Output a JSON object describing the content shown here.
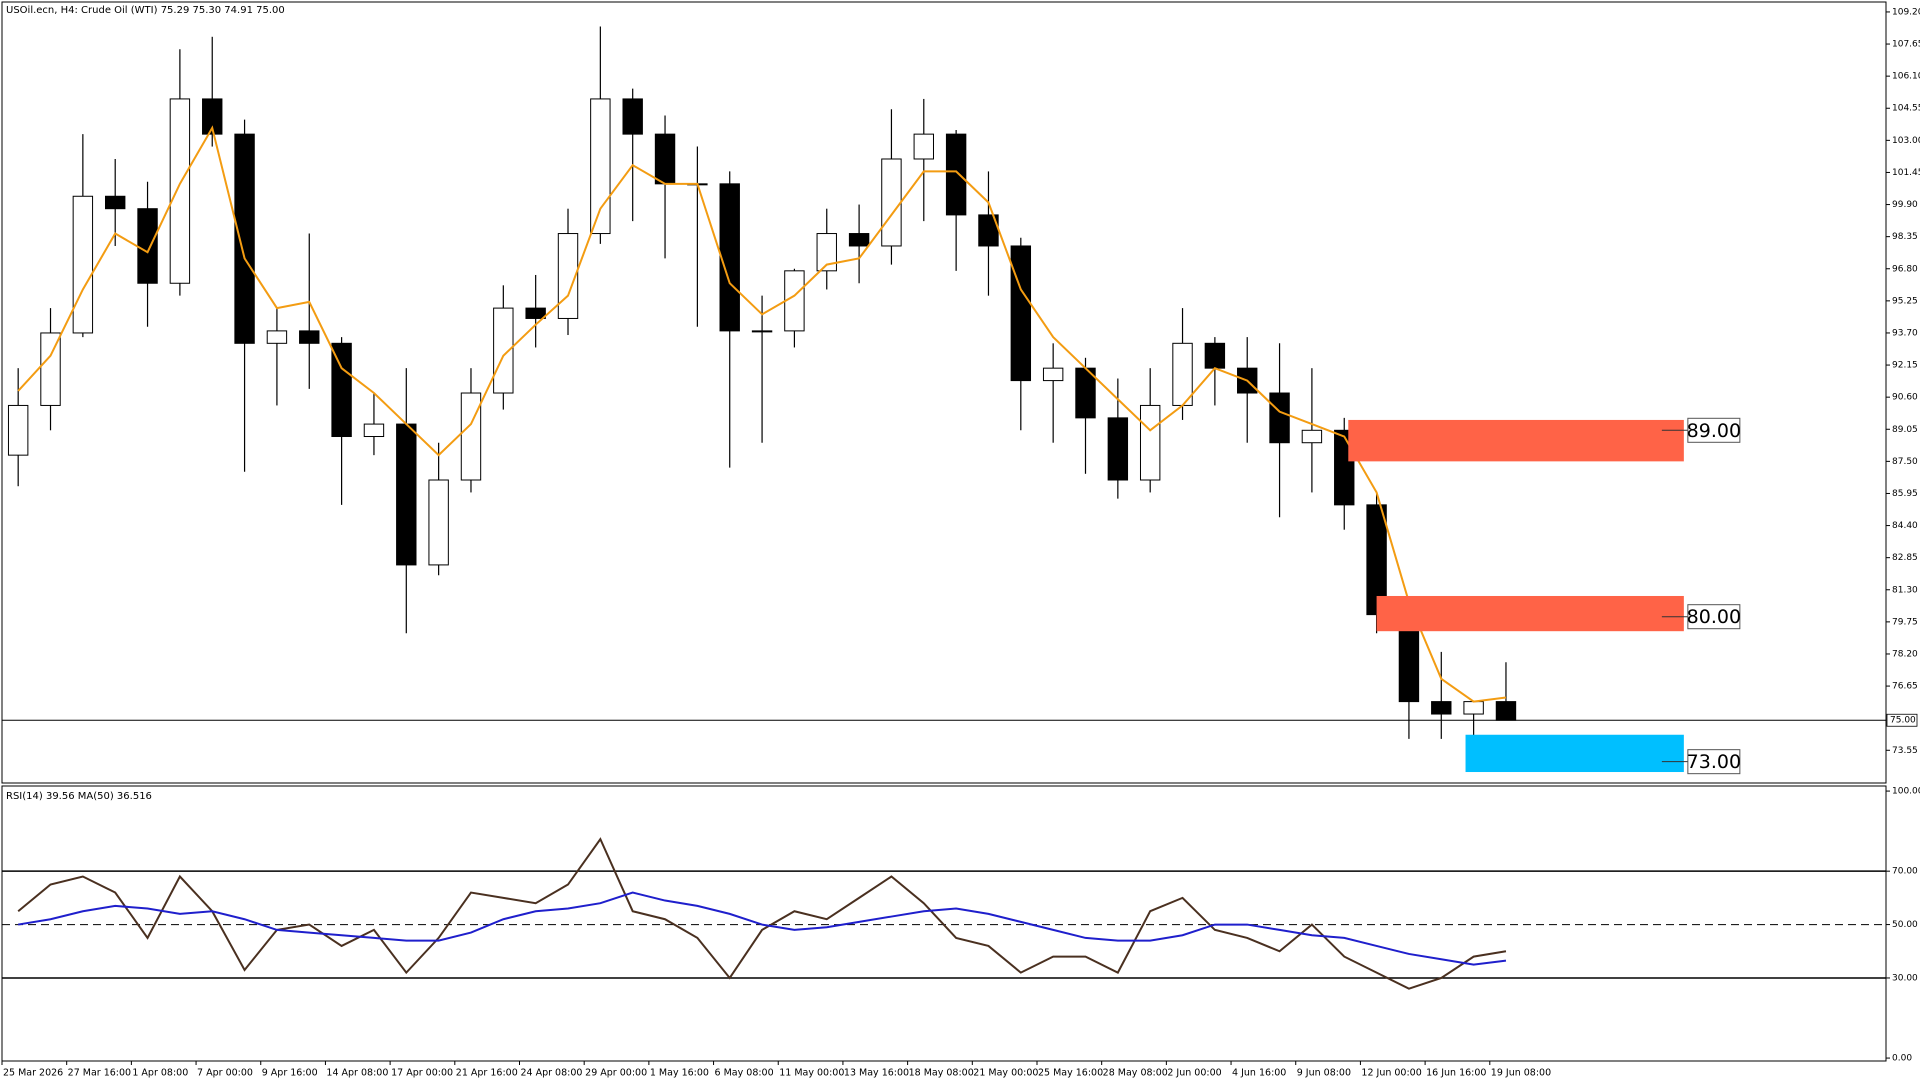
{
  "chart_data": [
    {
      "type": "candlestick",
      "title": "USOil.ecn, H4: Crude Oil (WTI) 75.29 75.30 74.91 75.00",
      "x": [
        4,
        12,
        20,
        28,
        36,
        44,
        52,
        60,
        68,
        76,
        84,
        92,
        100,
        108,
        116,
        124,
        132,
        140,
        148,
        156,
        164,
        172,
        180,
        188,
        196,
        204,
        212,
        220,
        228,
        236,
        244,
        252,
        260,
        268,
        276,
        284,
        292,
        300,
        308,
        316,
        324,
        332,
        340,
        348,
        356,
        364,
        372
      ],
      "open": [
        87.8,
        90.2,
        93.7,
        100.3,
        99.7,
        96.1,
        105.0,
        103.3,
        93.2,
        93.8,
        93.2,
        88.7,
        89.3,
        82.5,
        86.6,
        90.8,
        94.9,
        94.4,
        98.5,
        105.0,
        103.3,
        100.9,
        100.9,
        93.8,
        93.8,
        96.7,
        98.5,
        97.9,
        102.1,
        103.3,
        99.4,
        97.9,
        91.4,
        92.0,
        89.6,
        86.6,
        90.2,
        93.2,
        92.0,
        90.8,
        88.4,
        89.0,
        85.4,
        80.1,
        75.9,
        75.3,
        75.9
      ],
      "high": [
        92.0,
        94.9,
        103.3,
        102.1,
        101.0,
        107.4,
        108.0,
        104.0,
        94.9,
        98.5,
        93.5,
        90.8,
        92.0,
        88.4,
        92.0,
        96.0,
        96.5,
        99.7,
        108.5,
        105.5,
        104.2,
        102.7,
        101.5,
        95.5,
        96.8,
        99.7,
        99.9,
        104.5,
        105.0,
        103.5,
        101.5,
        98.3,
        93.2,
        92.5,
        91.5,
        92.0,
        94.9,
        93.5,
        93.5,
        93.2,
        92.0,
        89.6,
        86.0,
        80.7,
        78.3,
        75.9,
        77.8
      ],
      "low": [
        86.3,
        89.0,
        93.5,
        97.9,
        94.0,
        95.5,
        102.7,
        87.0,
        90.2,
        91.0,
        85.4,
        87.8,
        79.2,
        82.0,
        86.0,
        90.0,
        93.0,
        93.6,
        98.0,
        99.1,
        97.3,
        94.0,
        87.2,
        88.4,
        93.0,
        95.8,
        96.1,
        97.0,
        99.1,
        96.7,
        95.5,
        89.0,
        88.4,
        86.9,
        85.7,
        86.0,
        89.5,
        90.2,
        88.4,
        84.8,
        86.0,
        84.2,
        79.2,
        74.1,
        74.1,
        73.3,
        75.0
      ],
      "close": [
        90.2,
        93.7,
        100.3,
        99.7,
        96.1,
        105.0,
        103.3,
        93.2,
        93.8,
        93.2,
        88.7,
        89.3,
        82.5,
        86.6,
        90.8,
        94.9,
        94.4,
        98.5,
        105.0,
        103.3,
        100.9,
        100.9,
        93.8,
        93.8,
        96.7,
        98.5,
        97.9,
        102.1,
        103.3,
        99.4,
        97.9,
        91.4,
        92.0,
        89.6,
        86.6,
        90.2,
        93.2,
        92.0,
        90.8,
        88.4,
        89.0,
        85.4,
        80.1,
        75.9,
        75.3,
        75.9,
        75.0
      ],
      "up_color": "#ffffff",
      "down_color": "#000000",
      "overlays": [
        {
          "color": "#f39c12",
          "values": [
            90.9,
            92.6,
            95.8,
            98.5,
            97.6,
            100.9,
            103.6,
            97.3,
            94.9,
            95.2,
            92.0,
            90.8,
            89.3,
            87.8,
            89.3,
            92.6,
            94.1,
            95.5,
            99.7,
            101.8,
            100.9,
            100.9,
            96.1,
            94.6,
            95.5,
            97.0,
            97.3,
            99.4,
            101.5,
            101.5,
            100.0,
            95.8,
            93.5,
            92.0,
            90.5,
            89.0,
            90.2,
            92.0,
            91.4,
            89.9,
            89.3,
            88.7,
            86.0,
            80.7,
            77.0,
            75.9,
            76.1
          ]
        }
      ],
      "zones": [
        {
          "level": {
            "value": 89,
            "label": "89.00"
          },
          "top": 89.5,
          "bottom": 87.5,
          "x_range": [
            333,
            416
          ],
          "color": "#ff6347"
        },
        {
          "level": {
            "value": 80,
            "label": "80.00"
          },
          "top": 81.0,
          "bottom": 79.3,
          "x_range": [
            340,
            416
          ],
          "color": "#ff6347"
        },
        {
          "level": {
            "value": 73,
            "label": "73.00"
          },
          "top": 74.3,
          "bottom": 72.5,
          "x_range": [
            362,
            416
          ],
          "color": "#00bfff"
        }
      ],
      "current_price": {
        "value": 75,
        "label": "75.00"
      },
      "xlim": [
        0,
        466
      ],
      "ylim": [
        71.97,
        109.68
      ],
      "yticks": [
        {
          "value": 109.2,
          "label": "109.20"
        },
        107.65,
        {
          "value": 106.1,
          "label": "106.10"
        },
        104.55,
        {
          "value": 103,
          "label": "103.00"
        },
        101.45,
        {
          "value": 99.9,
          "label": "99.90"
        },
        98.35,
        {
          "value": 96.8,
          "label": "96.80"
        },
        95.25,
        {
          "value": 93.7,
          "label": "93.70"
        },
        92.15,
        {
          "value": 90.6,
          "label": "90.60"
        },
        89.05,
        {
          "value": 87.5,
          "label": "87.50"
        },
        85.95,
        {
          "value": 84.4,
          "label": "84.40"
        },
        82.85,
        {
          "value": 81.3,
          "label": "81.30"
        },
        79.75,
        {
          "value": 78.2,
          "label": "78.20"
        },
        76.65,
        73.55
      ]
    },
    {
      "type": "line",
      "title": "RSI(14) 39.56 MA(50) 36.516",
      "x": [
        4,
        12,
        20,
        28,
        36,
        44,
        52,
        60,
        68,
        76,
        84,
        92,
        100,
        108,
        116,
        124,
        132,
        140,
        148,
        156,
        164,
        172,
        180,
        188,
        196,
        204,
        212,
        220,
        228,
        236,
        244,
        252,
        260,
        268,
        276,
        284,
        292,
        300,
        308,
        316,
        324,
        332,
        340,
        348,
        356,
        364,
        372
      ],
      "series": [
        {
          "color": "#4a3020",
          "values": [
            55,
            65,
            68,
            62,
            45,
            68,
            55,
            33,
            48,
            50,
            42,
            48,
            32,
            45,
            62,
            60,
            58,
            65,
            82,
            55,
            52,
            45,
            30,
            48,
            55,
            52,
            60,
            68,
            58,
            45,
            42,
            32,
            38,
            38,
            32,
            55,
            60,
            48,
            45,
            40,
            50,
            38,
            32,
            26,
            30,
            38,
            40
          ]
        },
        {
          "color": "#1f1fcc",
          "values": [
            50,
            52,
            55,
            57,
            56,
            54,
            55,
            52,
            48,
            47,
            46,
            45,
            44,
            44,
            47,
            52,
            55,
            56,
            58,
            62,
            59,
            57,
            54,
            50,
            48,
            49,
            51,
            53,
            55,
            56,
            54,
            51,
            48,
            45,
            44,
            44,
            46,
            50,
            50,
            48,
            46,
            45,
            42,
            39,
            37,
            35,
            36.5
          ]
        }
      ],
      "xlim": [
        0,
        466
      ],
      "ylim": [
        -1.1,
        101.9
      ],
      "yticks": [
        {
          "value": 100,
          "label": "100.00"
        },
        {
          "value": 70,
          "label": "70.00",
          "line": "solid"
        },
        {
          "value": 50,
          "label": "50.00",
          "line": "dashed"
        },
        {
          "value": 30,
          "label": "30.00",
          "line": "solid"
        },
        {
          "value": 0,
          "label": "0.00"
        }
      ],
      "xticks": [
        {
          "value": 0,
          "label": "25 Mar 2026"
        },
        {
          "value": 16,
          "label": "27 Mar 16:00"
        },
        {
          "value": 32,
          "label": "1 Apr 08:00"
        },
        {
          "value": 48,
          "label": "7 Apr 00:00"
        },
        {
          "value": 64,
          "label": "9 Apr 16:00"
        },
        {
          "value": 80,
          "label": "14 Apr 08:00"
        },
        {
          "value": 96,
          "label": "17 Apr 00:00"
        },
        {
          "value": 112,
          "label": "21 Apr 16:00"
        },
        {
          "value": 128,
          "label": "24 Apr 08:00"
        },
        {
          "value": 144,
          "label": "29 Apr 00:00"
        },
        {
          "value": 160,
          "label": "1 May 16:00"
        },
        {
          "value": 176,
          "label": "6 May 08:00"
        },
        {
          "value": 192,
          "label": "11 May 00:00"
        },
        {
          "value": 208,
          "label": "13 May 16:00"
        },
        {
          "value": 224,
          "label": "18 May 08:00"
        },
        {
          "value": 240,
          "label": "21 May 00:00"
        },
        {
          "value": 256,
          "label": "25 May 16:00"
        },
        {
          "value": 272,
          "label": "28 May 08:00"
        },
        {
          "value": 288,
          "label": "2 Jun 00:00"
        },
        {
          "value": 304,
          "label": "4 Jun 16:00"
        },
        {
          "value": 320,
          "label": "9 Jun 08:00"
        },
        {
          "value": 336,
          "label": "12 Jun 00:00"
        },
        {
          "value": 352,
          "label": "16 Jun 16:00"
        },
        {
          "value": 368,
          "label": "19 Jun 08:00"
        }
      ]
    }
  ]
}
